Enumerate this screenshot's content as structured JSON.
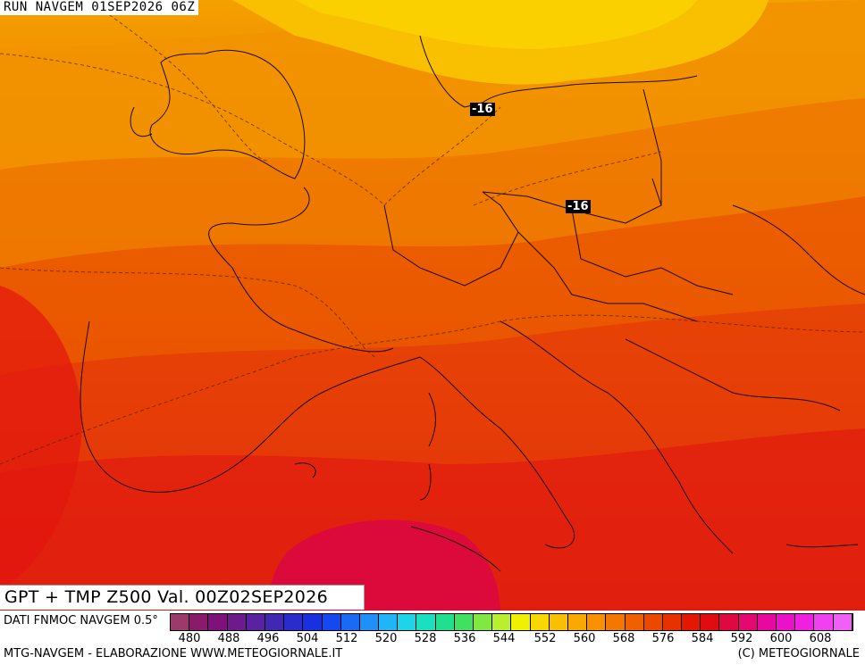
{
  "header": {
    "run_label": "RUN NAVGEM 01SEP2026 06Z"
  },
  "map": {
    "title": "GPT + TMP Z500 Val. 00Z02SEP2026",
    "isotherm_labels": [
      "-16",
      "-16"
    ]
  },
  "legend": {
    "source": "DATI FNMOC NAVGEM 0.5°",
    "colors": [
      "#9c3a6c",
      "#8a1a6a",
      "#80107a",
      "#6e1a8c",
      "#5a22a0",
      "#4028b4",
      "#2a2ccc",
      "#1830e0",
      "#1448f0",
      "#1a6af4",
      "#1e90f8",
      "#20b4f8",
      "#1ed4e8",
      "#18e0c0",
      "#20e090",
      "#40e060",
      "#80e840",
      "#b8f030",
      "#f0f000",
      "#f8d800",
      "#f8c000",
      "#f8a800",
      "#f89000",
      "#f47800",
      "#f06000",
      "#ec4800",
      "#e83000",
      "#e41800",
      "#e00c10",
      "#e00840",
      "#e40870",
      "#e808a0",
      "#ec10c8",
      "#f020e0",
      "#f040f0",
      "#f060f8"
    ],
    "tick_labels": [
      "480",
      "488",
      "496",
      "504",
      "512",
      "520",
      "528",
      "536",
      "544",
      "552",
      "560",
      "568",
      "576",
      "584",
      "592",
      "600",
      "608"
    ]
  },
  "footer": {
    "left_credit": "MTG-NAVGEM - ELABORAZIONE WWW.METEOGIORNALE.IT",
    "right_credit": "(C) METEOGIORNALE"
  }
}
